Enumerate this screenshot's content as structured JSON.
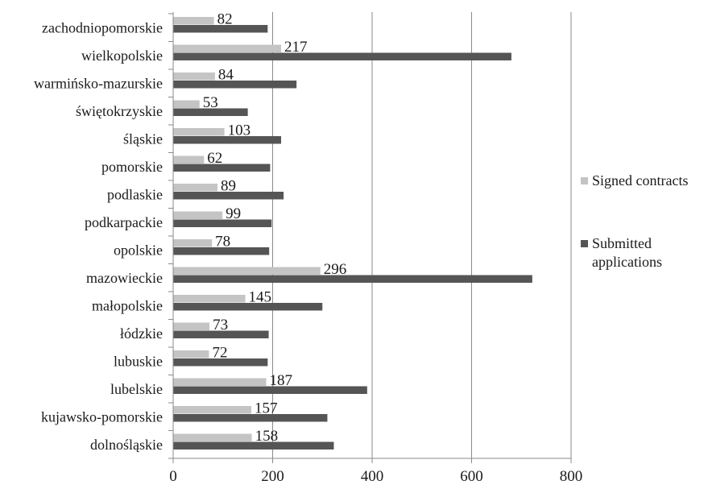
{
  "chart_data": {
    "type": "bar",
    "orientation": "horizontal",
    "categories": [
      "zachodniopomorskie",
      "wielkopolskie",
      "warmińsko-mazurskie",
      "świętokrzyskie",
      "śląskie",
      "pomorskie",
      "podlaskie",
      "podkarpackie",
      "opolskie",
      "mazowieckie",
      "małopolskie",
      "łódzkie",
      "lubuskie",
      "lubelskie",
      "kujawsko-pomorskie",
      "dolnośląskie"
    ],
    "series": [
      {
        "name": "Signed contracts",
        "color": "#c4c4c4",
        "values": [
          82,
          217,
          84,
          53,
          103,
          62,
          89,
          99,
          78,
          296,
          145,
          73,
          72,
          187,
          157,
          158
        ],
        "data_labels": true
      },
      {
        "name": "Submitted applications",
        "color": "#555555",
        "values": [
          190,
          680,
          248,
          150,
          217,
          195,
          222,
          198,
          193,
          722,
          300,
          192,
          190,
          390,
          310,
          323
        ],
        "data_labels": false
      }
    ],
    "xlim": [
      0,
      800
    ],
    "xticks": [
      0,
      200,
      400,
      600,
      800
    ],
    "grid": "vertical",
    "legend": "right",
    "title": "",
    "xlabel": "",
    "ylabel": ""
  }
}
